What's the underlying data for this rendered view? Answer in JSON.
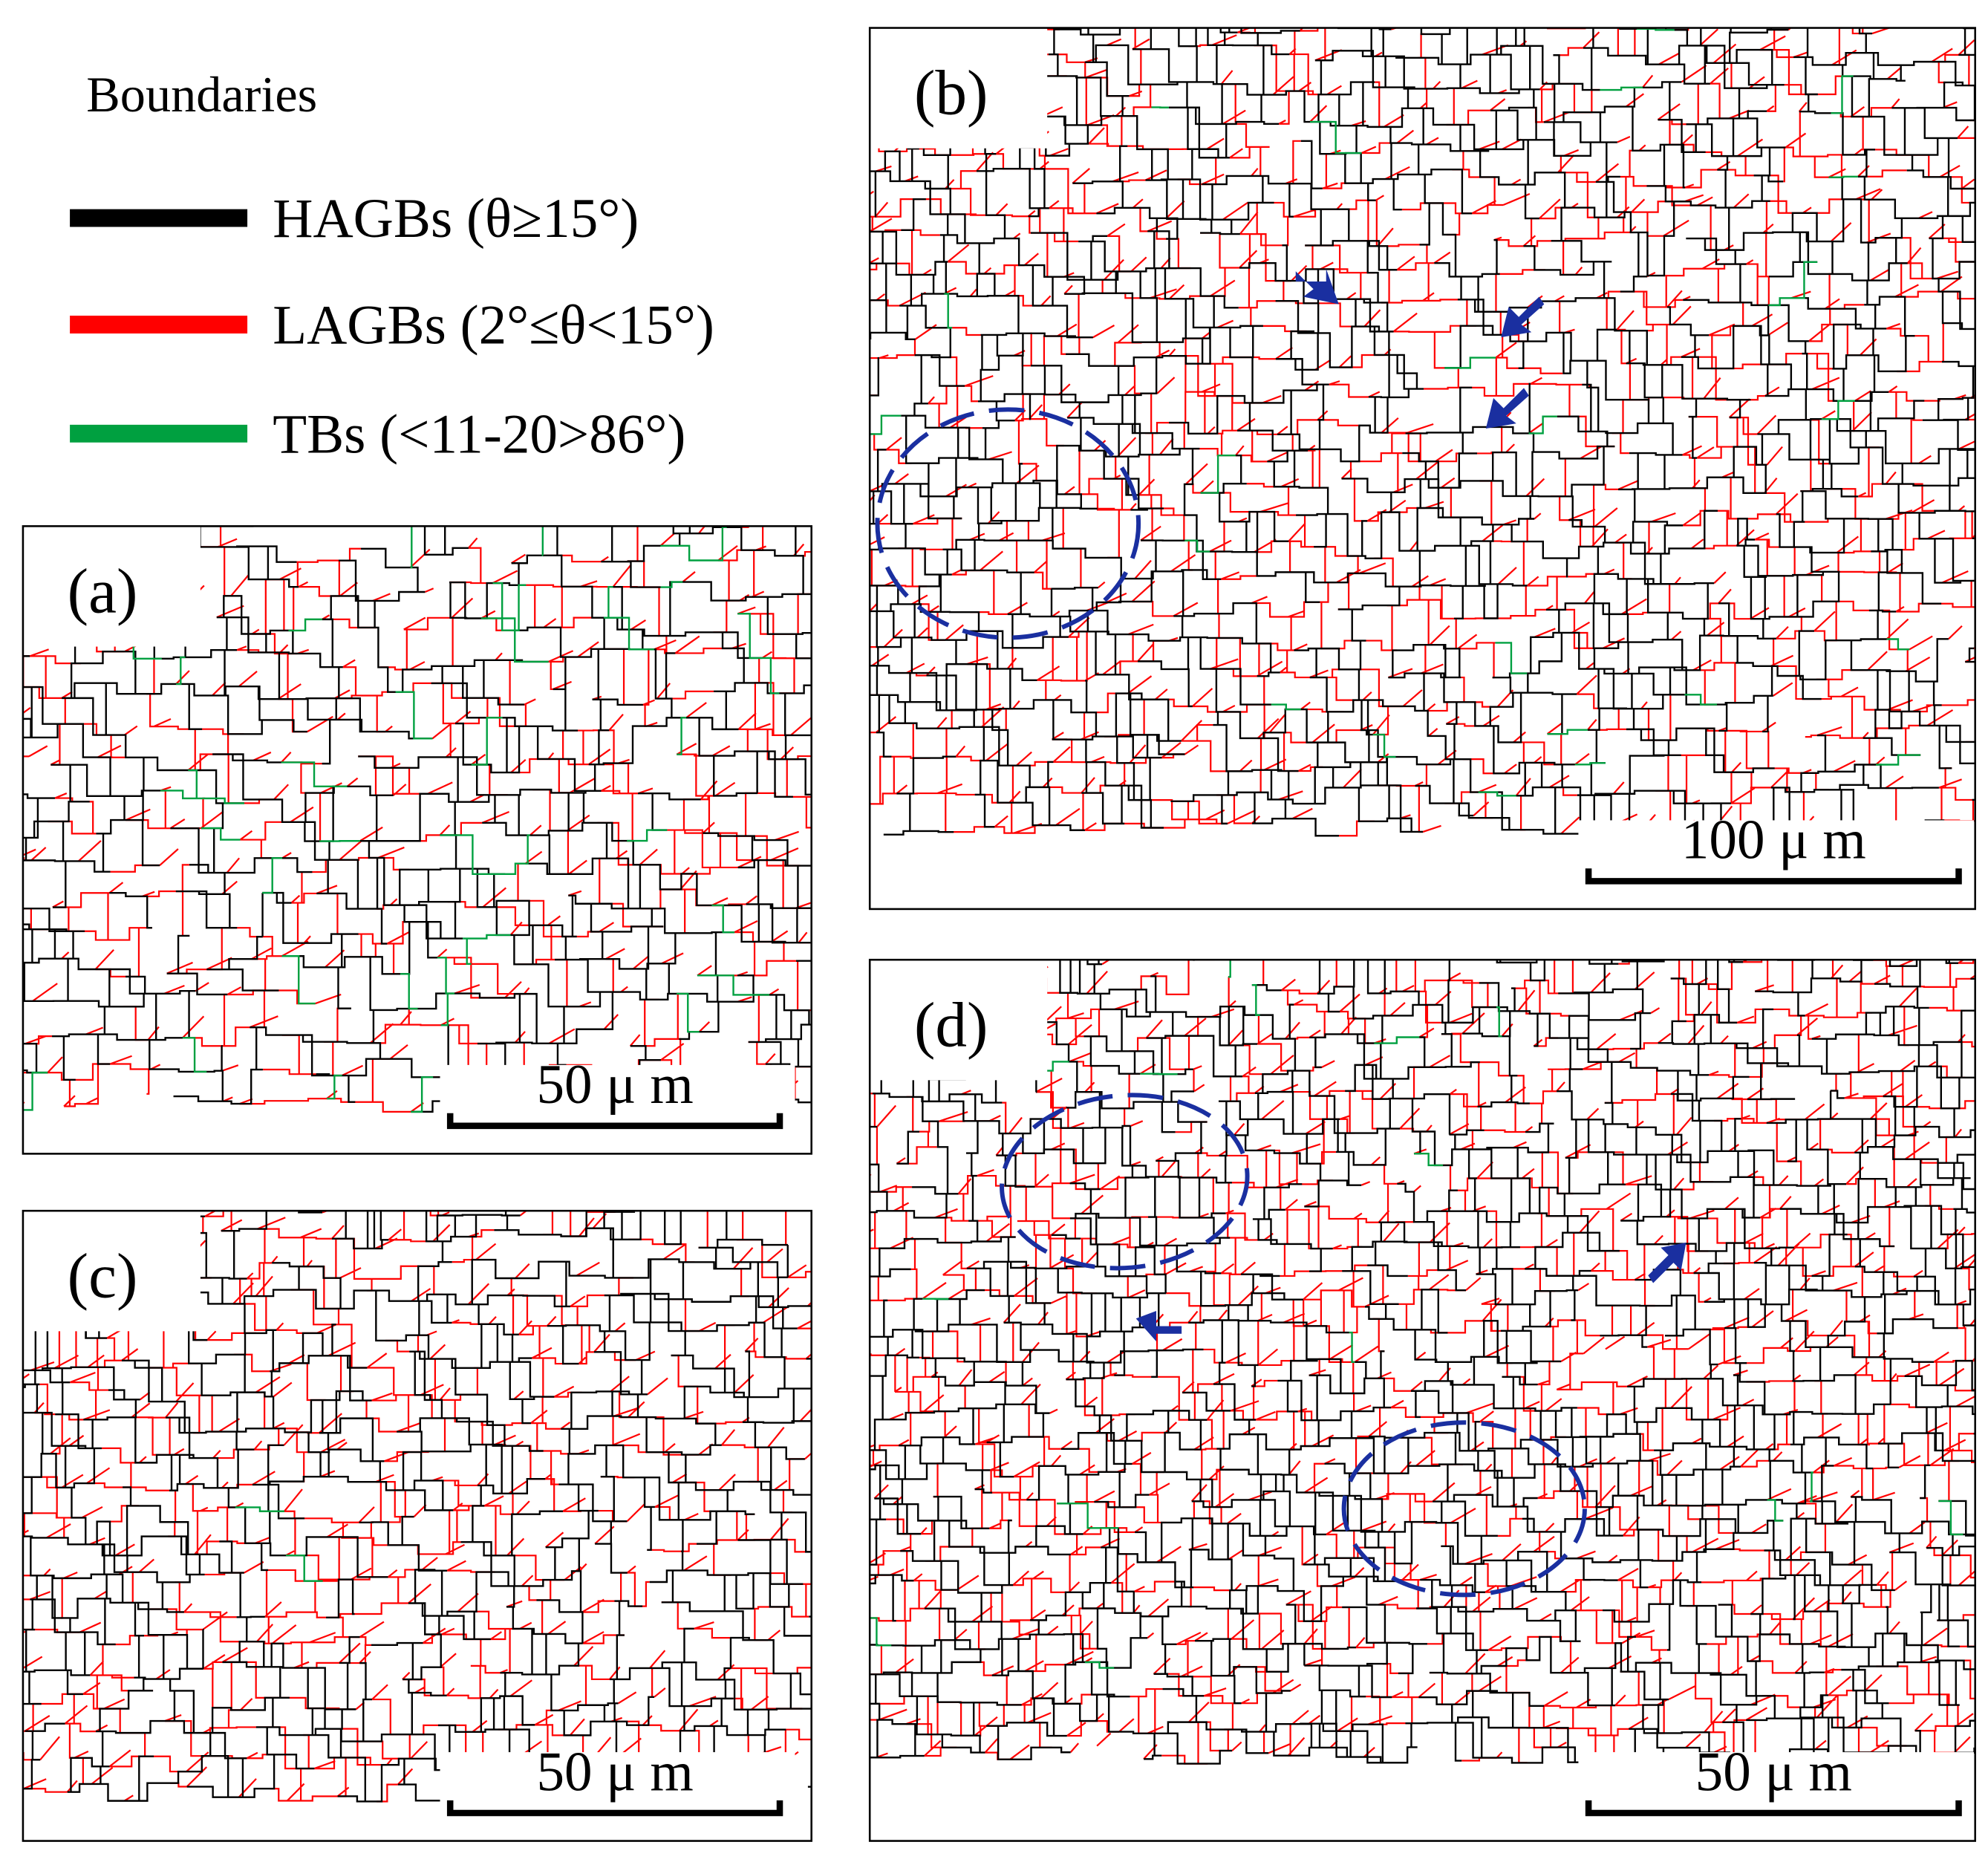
{
  "legend": {
    "title": "Boundaries",
    "items": [
      {
        "label": "HAGBs (θ≥15°)",
        "color": "#000000"
      },
      {
        "label": "LAGBs (2°≤θ<15°)",
        "color": "#ff0000"
      },
      {
        "label": "TBs (<11-20>86°)",
        "color": "#00a040"
      }
    ]
  },
  "panels": [
    {
      "label": "(a)",
      "scale_bar": "50 μ m"
    },
    {
      "label": "(b)",
      "scale_bar": "100 μ m"
    },
    {
      "label": "(c)",
      "scale_bar": "50 μ m"
    },
    {
      "label": "(d)",
      "scale_bar": "50 μ m"
    }
  ]
}
